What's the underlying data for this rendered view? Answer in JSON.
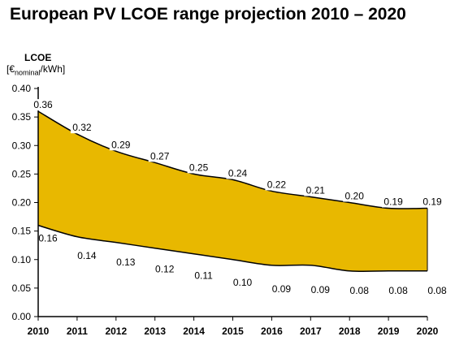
{
  "chart_data": {
    "type": "area",
    "title": "European PV LCOE range projection 2010 – 2020",
    "ylabel": "LCOE",
    "yunit_open": "[€",
    "yunit_sub": "nominal",
    "yunit_close": "/kWh]",
    "xlabel": "",
    "x": [
      "2010",
      "2011",
      "2012",
      "2013",
      "2014",
      "2015",
      "2016",
      "2017",
      "2018",
      "2019",
      "2020"
    ],
    "yticks": [
      "0.00",
      "0.05",
      "0.10",
      "0.15",
      "0.20",
      "0.25",
      "0.30",
      "0.35",
      "0.40"
    ],
    "ylim": [
      0,
      0.4
    ],
    "grid": false,
    "series": [
      {
        "values": [
          0.36,
          0.32,
          0.29,
          0.27,
          0.25,
          0.24,
          0.22,
          0.21,
          0.2,
          0.19,
          0.19
        ],
        "labels": [
          "0.36",
          "0.32",
          "0.29",
          "0.27",
          "0.25",
          "0.24",
          "0.22",
          "0.21",
          "0.20",
          "0.19",
          "0.19"
        ]
      },
      {
        "values": [
          0.16,
          0.14,
          0.13,
          0.12,
          0.11,
          0.1,
          0.09,
          0.09,
          0.08,
          0.08,
          0.08
        ],
        "labels": [
          "0.16",
          "0.14",
          "0.13",
          "0.12",
          "0.11",
          "0.10",
          "0.09",
          "0.09",
          "0.08",
          "0.08",
          "0.08"
        ]
      }
    ],
    "colors": {
      "fill": "#e8b800",
      "line": "#000000"
    }
  }
}
